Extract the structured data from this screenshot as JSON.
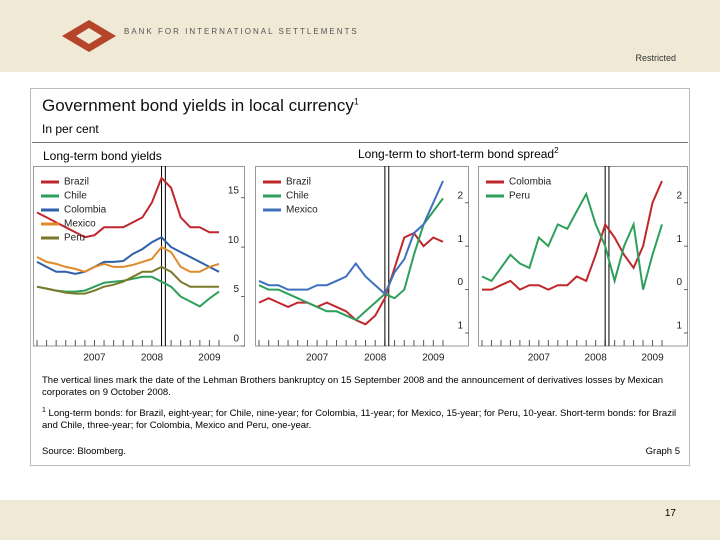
{
  "header": {
    "org": "BANK FOR INTERNATIONAL SETTLEMENTS",
    "classification": "Restricted"
  },
  "title": "Government bond yields in local currency",
  "title_note": "1",
  "subtitle": "In per cent",
  "panel_headings": [
    {
      "text": "Long-term bond yields"
    },
    {
      "text": "Long-term to short-term bond spread",
      "note": "2"
    }
  ],
  "chart_data": [
    {
      "type": "line",
      "categories": [
        null,
        null,
        null,
        null,
        null,
        null,
        "2007",
        null,
        null,
        null,
        null,
        null,
        "2008",
        null,
        null,
        null,
        null,
        null,
        "2009",
        null
      ],
      "ylim": [
        0,
        18
      ],
      "yticks": [
        0,
        5,
        10,
        15
      ],
      "grid": false,
      "series": [
        {
          "name": "Brazil",
          "color": "#c0272d",
          "values": [
            13.5,
            13,
            12.5,
            12,
            11.5,
            11,
            11.2,
            12,
            12,
            12,
            12.5,
            13,
            14.5,
            17,
            16,
            13,
            12,
            12,
            11.5,
            11.5
          ]
        },
        {
          "name": "Chile",
          "color": "#2ca05a",
          "values": [
            6,
            5.8,
            5.6,
            5.5,
            5.5,
            5.6,
            6,
            6.4,
            6.5,
            6.6,
            6.8,
            7,
            7,
            6.5,
            6,
            5,
            4.5,
            4,
            4.8,
            5.5
          ]
        },
        {
          "name": "Colombia",
          "color": "#2e5fa8",
          "values": [
            8.5,
            8,
            7.5,
            7.5,
            7.3,
            7.5,
            8,
            8.5,
            8.5,
            8.6,
            9.3,
            9.8,
            10.5,
            11,
            10,
            9.5,
            9,
            8.5,
            8,
            7.5
          ]
        },
        {
          "name": "Mexico",
          "color": "#e08a2c",
          "values": [
            9,
            8.5,
            8.3,
            8,
            7.8,
            7.5,
            8,
            8.3,
            8,
            8,
            8.2,
            8.5,
            8.8,
            10,
            9.5,
            8,
            7.5,
            7.5,
            8,
            8.3
          ]
        },
        {
          "name": "Peru",
          "color": "#7a7a2a",
          "values": [
            6,
            5.8,
            5.6,
            5.4,
            5.3,
            5.3,
            5.6,
            6,
            6.2,
            6.5,
            7,
            7.5,
            7.5,
            8,
            7.5,
            6.5,
            6,
            6,
            6,
            6
          ]
        }
      ]
    },
    {
      "type": "line",
      "categories": [
        null,
        null,
        null,
        null,
        null,
        null,
        "2007",
        null,
        null,
        null,
        null,
        null,
        "2008",
        null,
        null,
        null,
        null,
        null,
        "2009",
        null
      ],
      "ylim": [
        -1.3,
        2.8
      ],
      "yticks": [
        {
          "value": -1,
          "label": "1"
        },
        0,
        1,
        2
      ],
      "grid": false,
      "series": [
        {
          "name": "Brazil",
          "color": "#c0272d",
          "values": [
            -0.3,
            -0.2,
            -0.3,
            -0.4,
            -0.3,
            -0.3,
            -0.4,
            -0.3,
            -0.4,
            -0.5,
            -0.7,
            -0.8,
            -0.6,
            -0.2,
            0.5,
            1.2,
            1.3,
            1.0,
            1.2,
            1.1
          ]
        },
        {
          "name": "Chile",
          "color": "#2ca05a",
          "values": [
            0.1,
            0.0,
            0.0,
            -0.1,
            -0.2,
            -0.3,
            -0.4,
            -0.5,
            -0.5,
            -0.6,
            -0.7,
            -0.5,
            -0.3,
            -0.1,
            -0.2,
            0.0,
            0.8,
            1.5,
            1.8,
            2.1
          ]
        },
        {
          "name": "Mexico",
          "color": "#3f6fbf",
          "values": [
            0.2,
            0.1,
            0.1,
            0.0,
            0.0,
            0.0,
            0.1,
            0.1,
            0.2,
            0.3,
            0.6,
            0.3,
            0.1,
            -0.1,
            0.4,
            0.7,
            1.3,
            1.5,
            2.0,
            2.5
          ]
        }
      ]
    },
    {
      "type": "line",
      "categories": [
        null,
        null,
        null,
        null,
        null,
        null,
        "2007",
        null,
        null,
        null,
        null,
        null,
        "2008",
        null,
        null,
        null,
        null,
        null,
        "2009",
        null
      ],
      "ylim": [
        -1.3,
        2.8
      ],
      "yticks": [
        {
          "value": -1,
          "label": "1"
        },
        0,
        1,
        2
      ],
      "grid": false,
      "series": [
        {
          "name": "Colombia",
          "color": "#c0272d",
          "values": [
            0.0,
            0.0,
            0.1,
            0.2,
            0.0,
            0.1,
            0.1,
            0.0,
            0.1,
            0.1,
            0.3,
            0.2,
            0.8,
            1.5,
            1.2,
            0.8,
            0.5,
            1.0,
            2.0,
            2.5
          ]
        },
        {
          "name": "Peru",
          "color": "#2ca05a",
          "values": [
            0.3,
            0.2,
            0.5,
            0.8,
            0.6,
            0.5,
            1.2,
            1.0,
            1.5,
            1.4,
            1.8,
            2.2,
            1.5,
            1.0,
            0.2,
            1.0,
            1.5,
            0.0,
            0.8,
            1.5
          ]
        }
      ]
    }
  ],
  "notes": "The vertical lines mark the date of the Lehman Brothers bankruptcy on 15 September 2008 and the announcement of derivatives losses by Mexican corporates on 9 October 2008.",
  "footnote_marker": "1",
  "footnote": "Long-term bonds: for Brazil, eight-year; for Chile, nine-year; for Colombia, 11-year; for Mexico, 15-year; for Peru, 10-year. Short-term bonds: for Brazil and Chile, three-year; for Colombia, Mexico and Peru, one-year.",
  "source": "Source: Bloomberg.",
  "graph_label": "Graph 5",
  "page_number": "17"
}
